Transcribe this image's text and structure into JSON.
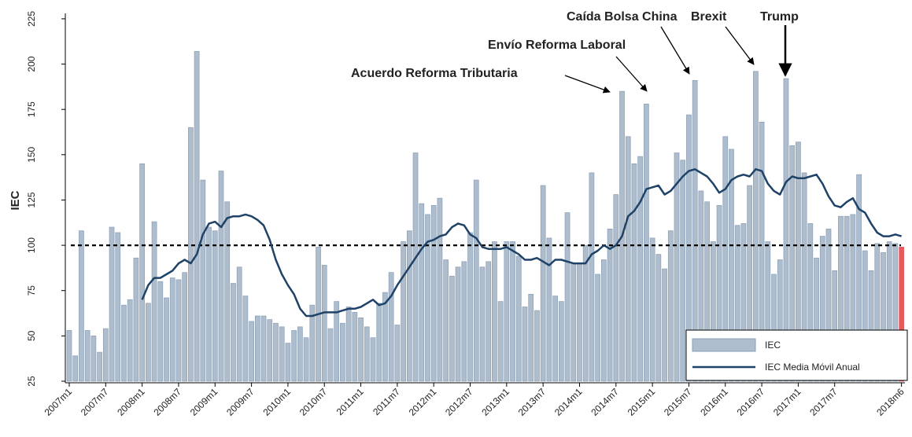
{
  "chart_data": {
    "type": "bar",
    "ylabel": "IEC",
    "categories": [
      "2007m1",
      null,
      null,
      null,
      null,
      null,
      "2007m7",
      null,
      null,
      null,
      null,
      null,
      "2008m1",
      null,
      null,
      null,
      null,
      null,
      "2008m7",
      null,
      null,
      null,
      null,
      null,
      "2009m1",
      null,
      null,
      null,
      null,
      null,
      "2009m7",
      null,
      null,
      null,
      null,
      null,
      "2010m1",
      null,
      null,
      null,
      null,
      null,
      "2010m7",
      null,
      null,
      null,
      null,
      null,
      "2011m1",
      null,
      null,
      null,
      null,
      null,
      "2011m7",
      null,
      null,
      null,
      null,
      null,
      "2012m1",
      null,
      null,
      null,
      null,
      null,
      "2012m7",
      null,
      null,
      null,
      null,
      null,
      "2013m1",
      null,
      null,
      null,
      null,
      null,
      "2013m7",
      null,
      null,
      null,
      null,
      null,
      "2014m1",
      null,
      null,
      null,
      null,
      null,
      "2014m7",
      null,
      null,
      null,
      null,
      null,
      "2015m1",
      null,
      null,
      null,
      null,
      null,
      "2015m7",
      null,
      null,
      null,
      null,
      null,
      "2016m1",
      null,
      null,
      null,
      null,
      null,
      "2016m7",
      null,
      null,
      null,
      null,
      null,
      "2017m1",
      null,
      null,
      null,
      null,
      null,
      "2017m7",
      null,
      null,
      null,
      null,
      null,
      null,
      null,
      null,
      null,
      null,
      "2018m6"
    ],
    "series": [
      {
        "name": "IEC",
        "type": "bar",
        "color": "#aebdcd",
        "highlight_last_color": "#e55a5c",
        "values": [
          53,
          39,
          108,
          53,
          50,
          41,
          54,
          110,
          107,
          67,
          70,
          93,
          145,
          68,
          113,
          80,
          71,
          82,
          81,
          85,
          165,
          207,
          136,
          110,
          108,
          141,
          124,
          79,
          88,
          72,
          58,
          61,
          61,
          59,
          57,
          55,
          46,
          53,
          55,
          49,
          67,
          99,
          89,
          54,
          69,
          57,
          66,
          63,
          60,
          55,
          49,
          68,
          74,
          85,
          56,
          102,
          108,
          151,
          123,
          117,
          122,
          126,
          92,
          83,
          88,
          91,
          107,
          136,
          88,
          91,
          102,
          69,
          102,
          102,
          94,
          66,
          73,
          64,
          133,
          104,
          72,
          69,
          118,
          90,
          90,
          100,
          140,
          84,
          92,
          109,
          128,
          185,
          160,
          145,
          149,
          178,
          104,
          95,
          87,
          108,
          151,
          147,
          172,
          191,
          130,
          124,
          102,
          122,
          160,
          153,
          111,
          112,
          133,
          196,
          168,
          102,
          84,
          92,
          192,
          155,
          157,
          140,
          112,
          93,
          105,
          109,
          86,
          116,
          116,
          117,
          139,
          97,
          86,
          101,
          96,
          102,
          101,
          99
        ]
      },
      {
        "name": "IEC Media Móvil Anual",
        "type": "line",
        "color": "#1f4268",
        "values": [
          null,
          null,
          null,
          null,
          null,
          null,
          null,
          null,
          null,
          null,
          null,
          null,
          70,
          78,
          82,
          82,
          84,
          86,
          90,
          92,
          90,
          95,
          106,
          112,
          113,
          110,
          115,
          116,
          116,
          117,
          116,
          114,
          111,
          103,
          92,
          84,
          78,
          73,
          65,
          61,
          61,
          62,
          63,
          63,
          63,
          64,
          65,
          65,
          66,
          68,
          70,
          67,
          68,
          72,
          78,
          83,
          88,
          93,
          98,
          102,
          103,
          105,
          106,
          110,
          112,
          111,
          106,
          104,
          99,
          98,
          98,
          98,
          99,
          97,
          95,
          92,
          92,
          93,
          91,
          89,
          92,
          92,
          91,
          90,
          90,
          90,
          95,
          97,
          100,
          98,
          100,
          105,
          116,
          119,
          124,
          131,
          132,
          133,
          128,
          130,
          134,
          138,
          141,
          142,
          140,
          138,
          134,
          129,
          131,
          136,
          138,
          139,
          138,
          142,
          141,
          134,
          130,
          128,
          135,
          138,
          137,
          137,
          138,
          139,
          134,
          127,
          122,
          121,
          124,
          126,
          120,
          118,
          112,
          107,
          105,
          105,
          106,
          105
        ]
      }
    ],
    "reference_line": 100,
    "ylim": [
      25,
      228
    ],
    "yticks": [
      25,
      50,
      75,
      100,
      125,
      150,
      175,
      200,
      225
    ],
    "legend": "lower right",
    "annotations": [
      {
        "text": "Acuerdo Reforma Tributaria",
        "color": "#6d8d7d"
      },
      {
        "text": "Envío Reforma Laboral",
        "color": "#6d8d7d"
      },
      {
        "text": "Caída Bolsa China",
        "color": "#1010e0"
      },
      {
        "text": "Brexit",
        "color": "#1010e0"
      },
      {
        "text": "Trump",
        "color": "#1010e0"
      }
    ]
  }
}
